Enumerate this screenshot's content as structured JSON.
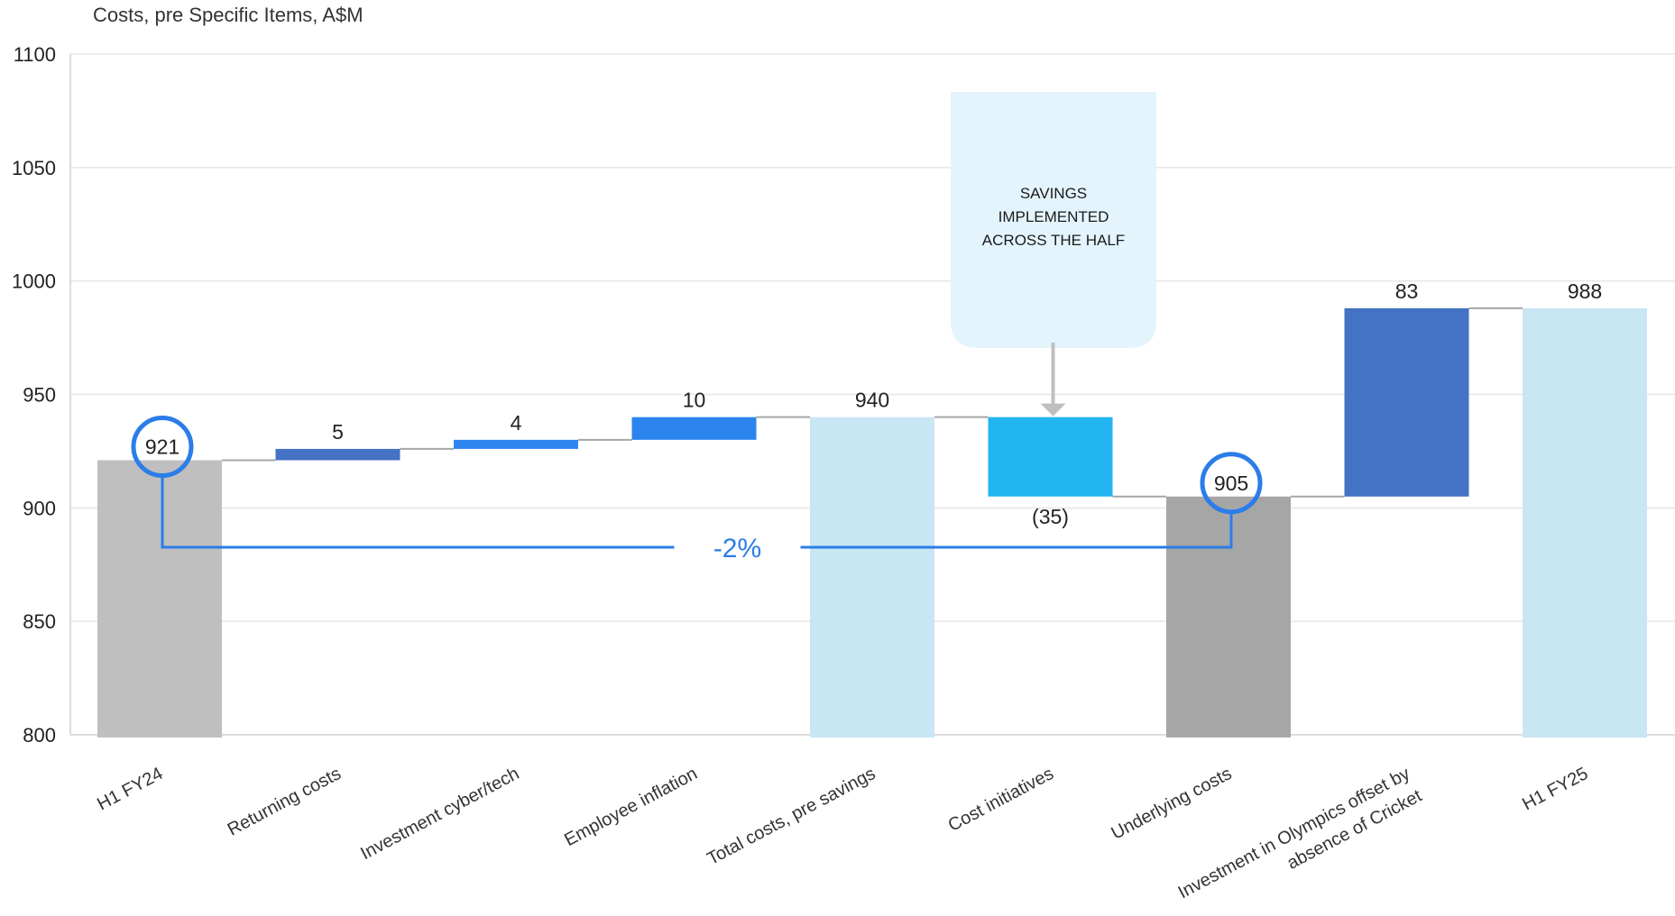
{
  "chart_data": {
    "type": "bar",
    "subtitle": "Costs, pre Specific Items, A$M",
    "ylim": [
      800,
      1100
    ],
    "yticks": [
      800,
      850,
      900,
      950,
      1000,
      1050,
      1100
    ],
    "grid": true,
    "categories": [
      "H1 FY24",
      "Returning costs",
      "Investment cyber/tech",
      "Employee inflation",
      "Total costs, pre savings",
      "Cost initiatives",
      "Underlying costs",
      "Investment in Olympics offset by absence of Cricket",
      "H1 FY25"
    ],
    "bars": [
      {
        "kind": "total",
        "start": 800,
        "end": 921,
        "label": "921",
        "color": "#bfbfbf",
        "circled": true
      },
      {
        "kind": "increase",
        "start": 921,
        "end": 926,
        "label": "5",
        "color": "#4472c4"
      },
      {
        "kind": "increase",
        "start": 926,
        "end": 930,
        "label": "4",
        "color": "#2f86f0"
      },
      {
        "kind": "increase",
        "start": 930,
        "end": 940,
        "label": "10",
        "color": "#2b84ee"
      },
      {
        "kind": "total",
        "start": 800,
        "end": 940,
        "label": "940",
        "color": "#c8e6f4"
      },
      {
        "kind": "decrease",
        "start": 940,
        "end": 905,
        "label": "(35)",
        "color": "#22b5f2"
      },
      {
        "kind": "total",
        "start": 800,
        "end": 905,
        "label": "905",
        "color": "#a6a6a6",
        "circled": true
      },
      {
        "kind": "increase",
        "start": 905,
        "end": 988,
        "label": "83",
        "color": "#4472c4"
      },
      {
        "kind": "total",
        "start": 800,
        "end": 988,
        "label": "988",
        "color": "#c8e6f4"
      }
    ],
    "callout": {
      "lines": [
        "SAVINGS",
        "IMPLEMENTED",
        "ACROSS THE HALF"
      ],
      "target_category": "Cost initiatives",
      "fill": "#e4f4fc"
    },
    "comparison": {
      "label": "-2%",
      "from": "H1 FY24",
      "to": "Underlying costs",
      "color": "#2b7de9"
    }
  }
}
